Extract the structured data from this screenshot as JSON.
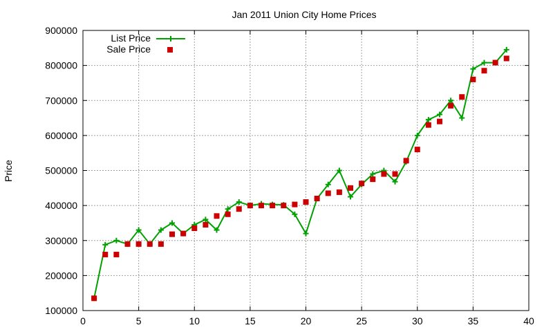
{
  "chart_data": {
    "type": "line",
    "title": "Jan 2011 Union City Home Prices",
    "xlabel": "",
    "ylabel": "Price",
    "xlim": [
      0,
      40
    ],
    "ylim": [
      100000,
      900000
    ],
    "x_ticks": [
      0,
      5,
      10,
      15,
      20,
      25,
      30,
      35,
      40
    ],
    "y_ticks": [
      100000,
      200000,
      300000,
      400000,
      500000,
      600000,
      700000,
      800000,
      900000
    ],
    "grid": true,
    "legend_position": "top-left",
    "series": [
      {
        "name": "List Price",
        "style": "line-plus",
        "color": "#00a000",
        "x": [
          1,
          2,
          3,
          4,
          5,
          6,
          7,
          8,
          9,
          10,
          11,
          12,
          13,
          14,
          15,
          16,
          17,
          18,
          19,
          20,
          21,
          22,
          23,
          24,
          25,
          26,
          27,
          28,
          29,
          30,
          31,
          32,
          33,
          34,
          35,
          36,
          37,
          38
        ],
        "values": [
          135000,
          288000,
          300000,
          290000,
          330000,
          290000,
          330000,
          350000,
          320000,
          345000,
          360000,
          330000,
          390000,
          410000,
          400000,
          405000,
          403000,
          402000,
          375000,
          320000,
          420000,
          460000,
          500000,
          425000,
          460000,
          490000,
          500000,
          468000,
          525000,
          600000,
          645000,
          660000,
          700000,
          650000,
          790000,
          808000,
          808000,
          845000
        ]
      },
      {
        "name": "Sale Price",
        "style": "square-marker",
        "color": "#cc0000",
        "x": [
          1,
          2,
          3,
          4,
          5,
          6,
          7,
          8,
          9,
          10,
          11,
          12,
          13,
          14,
          15,
          16,
          17,
          18,
          19,
          20,
          21,
          22,
          23,
          24,
          25,
          26,
          27,
          28,
          29,
          30,
          31,
          32,
          33,
          34,
          35,
          36,
          37,
          38
        ],
        "values": [
          135000,
          260000,
          260000,
          290000,
          290000,
          290000,
          290000,
          318000,
          320000,
          335000,
          345000,
          370000,
          375000,
          390000,
          400000,
          400000,
          400000,
          400000,
          403000,
          410000,
          420000,
          435000,
          438000,
          450000,
          463000,
          475000,
          490000,
          490000,
          528000,
          560000,
          630000,
          640000,
          685000,
          710000,
          760000,
          785000,
          808000,
          820000
        ]
      }
    ]
  }
}
